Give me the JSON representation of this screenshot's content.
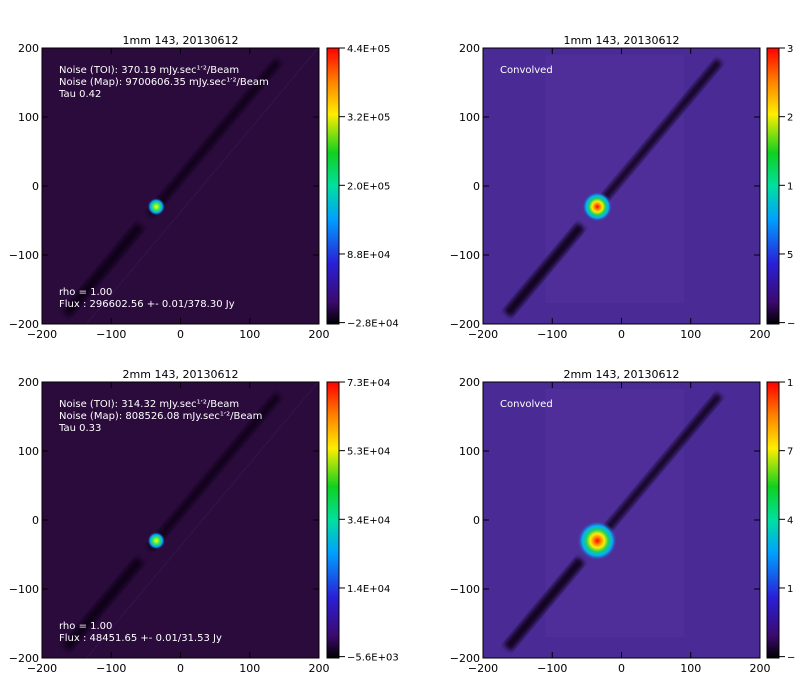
{
  "chart_data": [
    {
      "type": "heatmap",
      "title": "1mm 143, 20130612",
      "xlim": [
        -200,
        200
      ],
      "ylim": [
        -200,
        200
      ],
      "x_ticks": [
        "−200",
        "−100",
        "0",
        "100",
        "200"
      ],
      "y_ticks": [
        "−200",
        "−100",
        "0",
        "100",
        "200"
      ],
      "peak": {
        "x": -35,
        "y": -30
      },
      "annotations": {
        "noise_toi": "Noise (TOI):     370.19 mJy.sec¹′²/Beam",
        "noise_map": "Noise (Map): 9700606.35 mJy.sec¹′²/Beam",
        "tau": "Tau 0.42",
        "rho": "rho =             1.00",
        "flux": "Flux : 296602.56 +- 0.01/378.30 Jy"
      },
      "colorbar": {
        "ticks": [
          "4.4E+05",
          "3.2E+05",
          "2.0E+05",
          "8.8E+04",
          "−2.8E+04"
        ]
      }
    },
    {
      "type": "heatmap",
      "title": "1mm 143, 20130612",
      "xlim": [
        -200,
        200
      ],
      "ylim": [
        -200,
        200
      ],
      "x_ticks": [
        "−200",
        "−100",
        "0",
        "100",
        "200"
      ],
      "y_ticks": [
        "−200",
        "−100",
        "0",
        "100",
        "200"
      ],
      "peak": {
        "x": -35,
        "y": -30
      },
      "annotations": {
        "label": "Convolved"
      },
      "colorbar": {
        "ticks": [
          "3",
          "2",
          "1",
          "5",
          "−"
        ]
      }
    },
    {
      "type": "heatmap",
      "title": "2mm 143, 20130612",
      "xlim": [
        -200,
        200
      ],
      "ylim": [
        -200,
        200
      ],
      "x_ticks": [
        "−200",
        "−100",
        "0",
        "100",
        "200"
      ],
      "y_ticks": [
        "−200",
        "−100",
        "0",
        "100",
        "200"
      ],
      "peak": {
        "x": -35,
        "y": -30
      },
      "annotations": {
        "noise_toi": "Noise (TOI):     314.32 mJy.sec¹′²/Beam",
        "noise_map": "Noise (Map):   808526.08 mJy.sec¹′²/Beam",
        "tau": "Tau 0.33",
        "rho": "rho =             1.00",
        "flux": "Flux : 48451.65 +- 0.01/31.53 Jy"
      },
      "colorbar": {
        "ticks": [
          "7.3E+04",
          "5.3E+04",
          "3.4E+04",
          "1.4E+04",
          "−5.6E+03"
        ]
      }
    },
    {
      "type": "heatmap",
      "title": "2mm 143, 20130612",
      "xlim": [
        -200,
        200
      ],
      "ylim": [
        -200,
        200
      ],
      "x_ticks": [
        "−200",
        "−100",
        "0",
        "100",
        "200"
      ],
      "y_ticks": [
        "−200",
        "−100",
        "0",
        "100",
        "200"
      ],
      "peak": {
        "x": -35,
        "y": -30
      },
      "annotations": {
        "label": "Convolved"
      },
      "colorbar": {
        "ticks": [
          "1",
          "7",
          "4",
          "1",
          "−"
        ]
      }
    }
  ],
  "colors": {
    "background_raw": "#2a0b3c",
    "background_convolved": "#4a2a94",
    "stripe": "#100414"
  }
}
